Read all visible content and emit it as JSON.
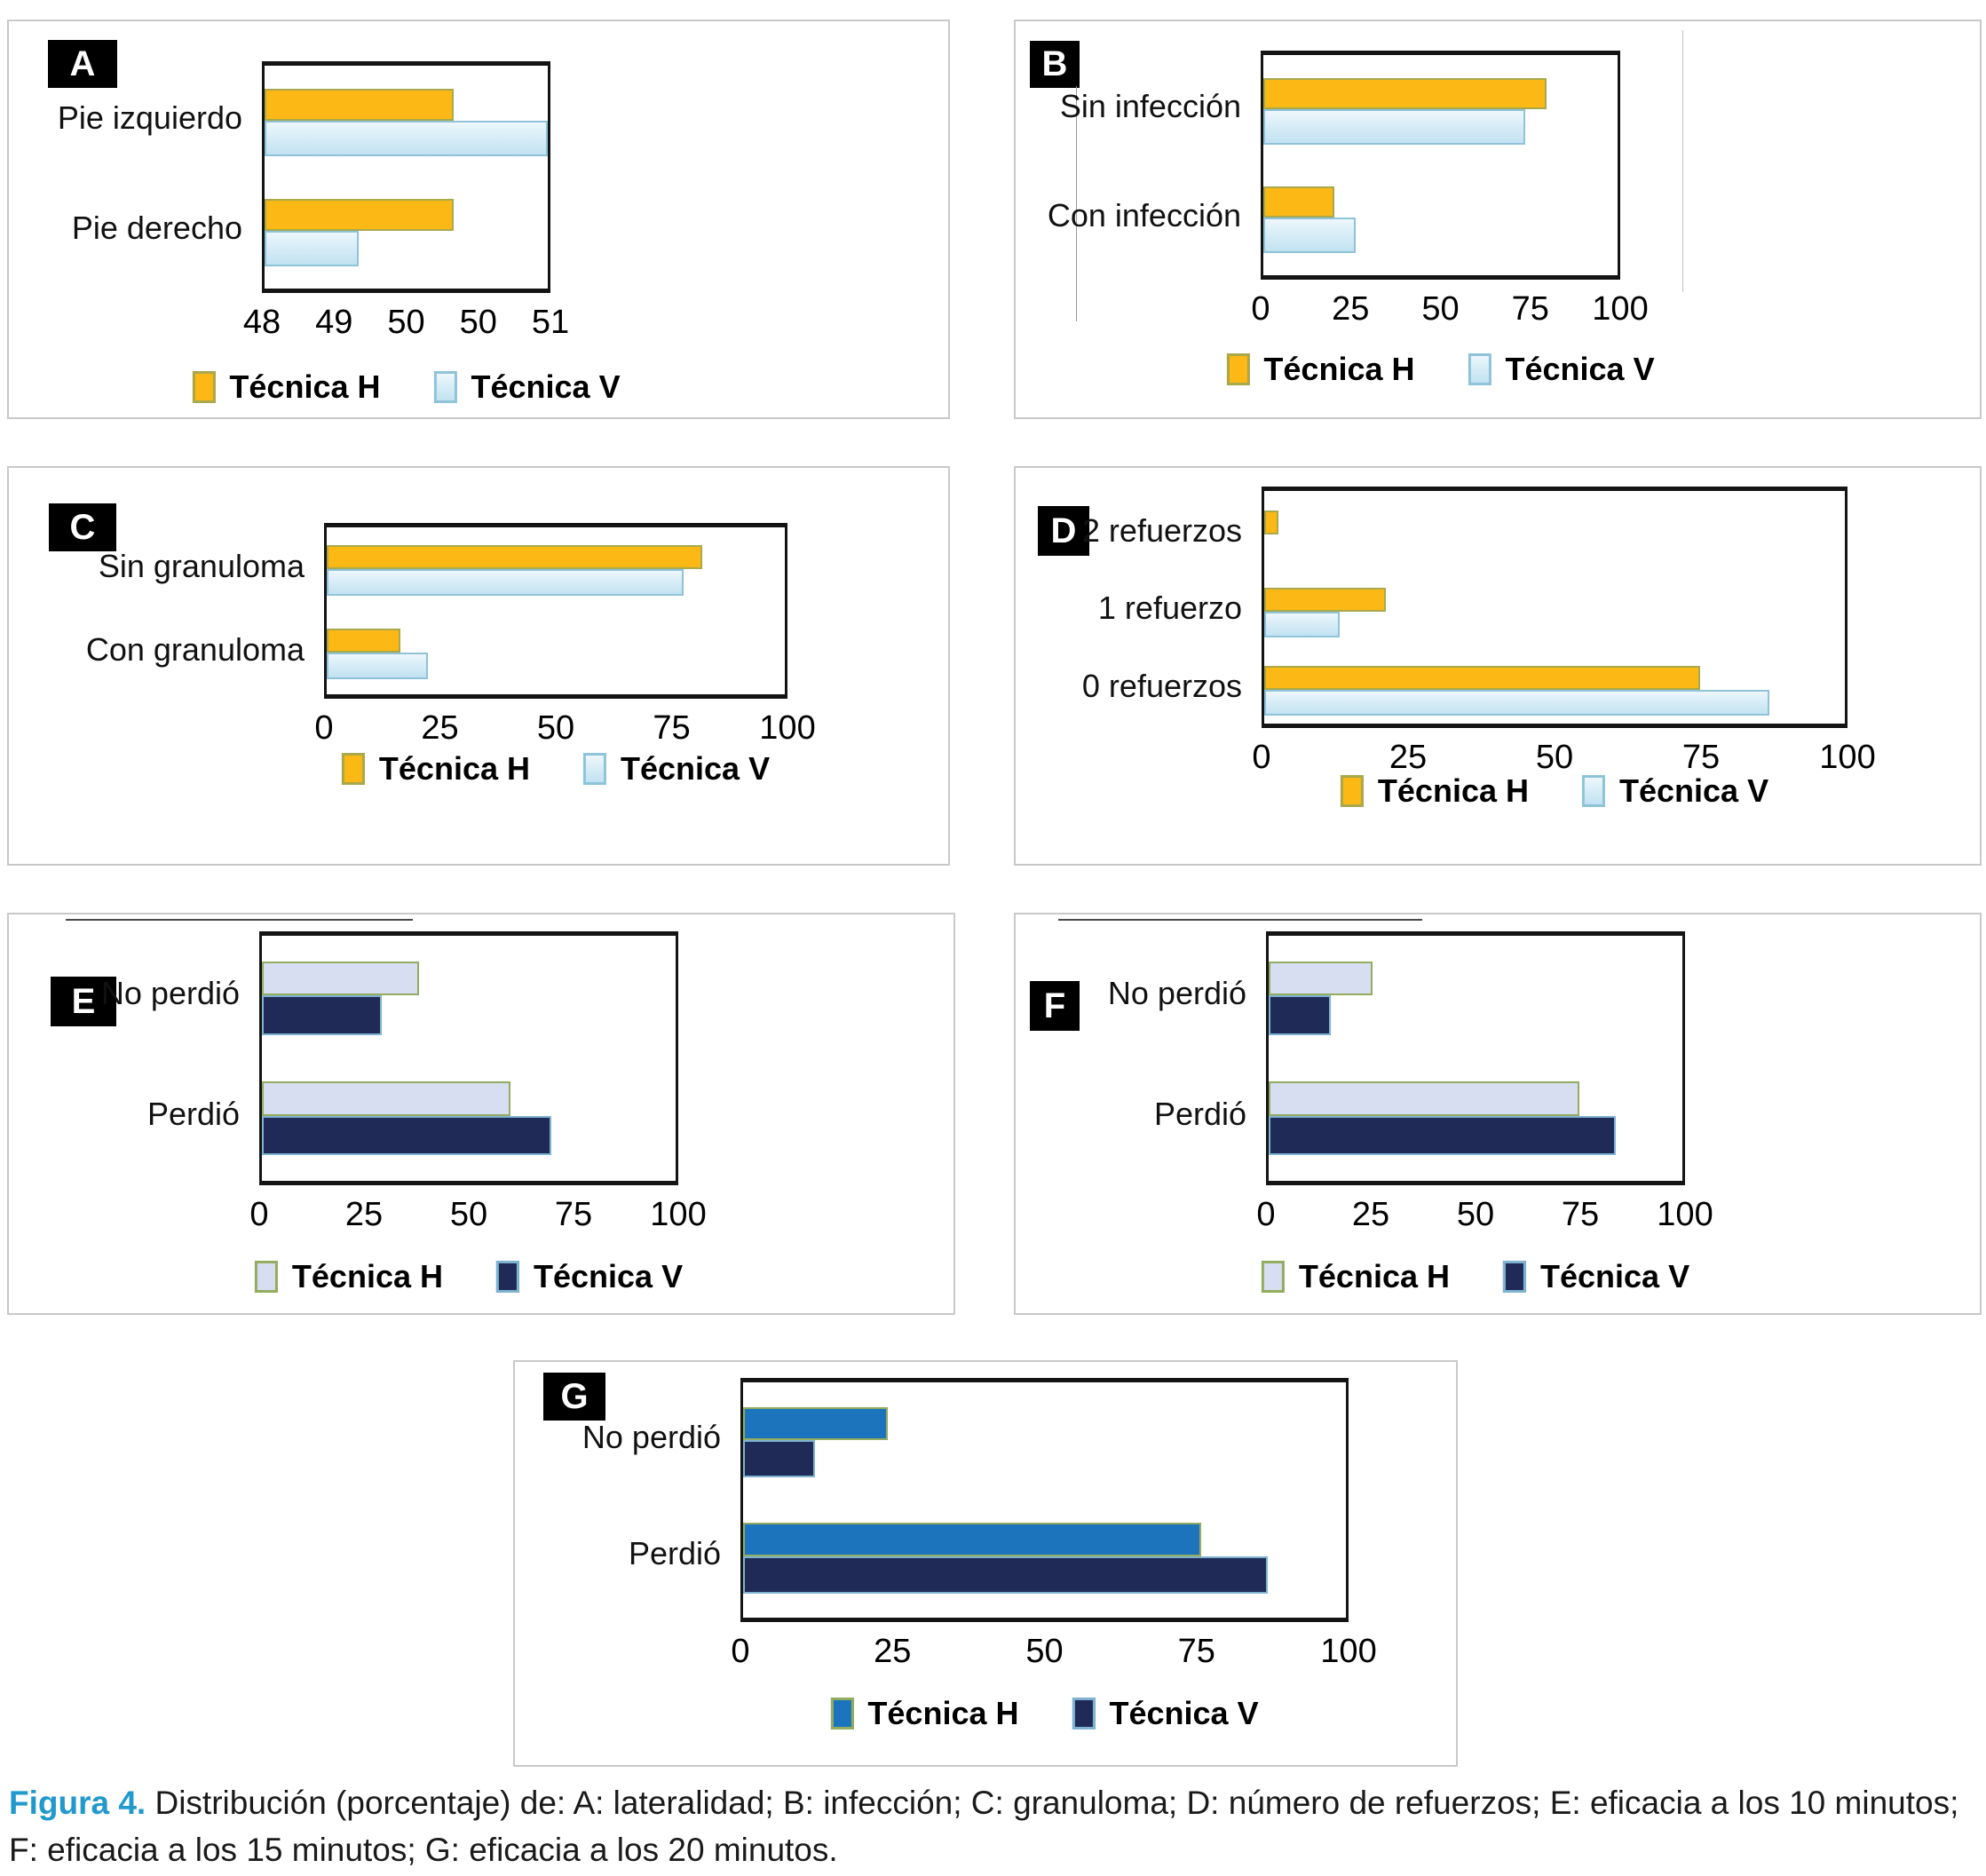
{
  "figure": {
    "caption_label": "Figura 4.",
    "caption_text": " Distribución (porcentaje) de: A: lateralidad; B: infección; C: granuloma; D: número de refuerzos; E: eficacia a los 10 minutos; F: eficacia a los 15 minutos; G: eficacia a los 20 minutos.",
    "caption_label_color": "#2199cc"
  },
  "palettes": {
    "yellow_lightblue": {
      "h_fill": "#fcb815",
      "h_border": "#a9a84b",
      "v_fill": "linear-gradient(180deg,#eef7fc 0%,#d8edf7 45%,#c2e2f1 100%)",
      "v_border": "#8ec3da"
    },
    "lavender_navy": {
      "h_fill": "#d8def1",
      "h_border": "#93ac60",
      "v_fill": "#1f2a56",
      "v_border": "#7fb3d2"
    },
    "blue_navy": {
      "h_fill": "#1c75bc",
      "h_border": "#93ac60",
      "v_fill": "#1f2a56",
      "v_border": "#7fb3d2"
    }
  },
  "chart_data": [
    {
      "panel": "A",
      "type": "bar",
      "orientation": "horizontal",
      "categories": [
        "Pie izquierdo",
        "Pie derecho"
      ],
      "series": [
        {
          "name": "Técnica H",
          "values": [
            50,
            50
          ]
        },
        {
          "name": "Técnica V",
          "values": [
            51,
            49
          ]
        }
      ],
      "axis": {
        "min": 48,
        "max": 51,
        "ticks": [
          "48",
          "49",
          "50",
          "50",
          "51"
        ]
      },
      "legend": [
        "Técnica H",
        "Técnica V"
      ],
      "legend_position": "bottom",
      "palette": "yellow_lightblue",
      "geom": {
        "panel": [
          8,
          22,
          1062,
          450
        ],
        "plot": [
          285,
          45,
          325,
          261
        ],
        "letter": [
          44,
          21,
          78,
          54
        ],
        "legend_dy": 85,
        "stray": []
      }
    },
    {
      "panel": "B",
      "type": "bar",
      "orientation": "horizontal",
      "categories": [
        "Sin infección",
        "Con infección"
      ],
      "series": [
        {
          "name": "Técnica H",
          "values": [
            80,
            20
          ]
        },
        {
          "name": "Técnica V",
          "values": [
            74,
            26
          ]
        }
      ],
      "axis": {
        "min": 0,
        "max": 100,
        "ticks": [
          "0",
          "25",
          "50",
          "75",
          "100"
        ]
      },
      "legend": [
        "Técnica H",
        "Técnica V"
      ],
      "legend_position": "bottom",
      "palette": "yellow_lightblue",
      "geom": {
        "panel": [
          1142,
          22,
          1090,
          450
        ],
        "plot": [
          276,
          33,
          405,
          258
        ],
        "letter": [
          16,
          22,
          56,
          53
        ],
        "legend_dy": 80,
        "stray": [
          {
            "dir": "v",
            "x": 68,
            "y1": 73,
            "y2": 338,
            "color": "#9a9a9a"
          },
          {
            "dir": "v",
            "x": 751,
            "y1": 10,
            "y2": 305,
            "color": "#c4c4c4"
          }
        ]
      }
    },
    {
      "panel": "C",
      "type": "bar",
      "orientation": "horizontal",
      "categories": [
        "Sin granuloma",
        "Con granuloma"
      ],
      "series": [
        {
          "name": "Técnica H",
          "values": [
            82,
            16
          ]
        },
        {
          "name": "Técnica V",
          "values": [
            78,
            22
          ]
        }
      ],
      "axis": {
        "min": 0,
        "max": 100,
        "ticks": [
          "0",
          "25",
          "50",
          "75",
          "100"
        ]
      },
      "legend": [
        "Técnica H",
        "Técnica V"
      ],
      "legend_position": "bottom",
      "palette": "yellow_lightblue",
      "geom": {
        "panel": [
          8,
          525,
          1062,
          450
        ],
        "plot": [
          355,
          62,
          522,
          198
        ],
        "letter": [
          45,
          40,
          76,
          54
        ],
        "legend_dy": 58,
        "stray": []
      }
    },
    {
      "panel": "D",
      "type": "bar",
      "orientation": "horizontal",
      "categories": [
        "2 refuerzos",
        "1 refuerzo",
        "0 refuerzos"
      ],
      "series": [
        {
          "name": "Técnica H",
          "values": [
            2.5,
            21,
            75
          ]
        },
        {
          "name": "Técnica V",
          "values": [
            0,
            13,
            87
          ]
        }
      ],
      "axis": {
        "min": 0,
        "max": 100,
        "ticks": [
          "0",
          "25",
          "50",
          "75",
          "100"
        ]
      },
      "legend": [
        "Técnica H",
        "Técnica V"
      ],
      "legend_position": "bottom",
      "palette": "yellow_lightblue",
      "geom": {
        "panel": [
          1142,
          525,
          1090,
          450
        ],
        "plot": [
          277,
          21,
          660,
          272
        ],
        "letter": [
          25,
          43,
          58,
          56
        ],
        "legend_dy": 50,
        "stray": []
      }
    },
    {
      "panel": "E",
      "type": "bar",
      "orientation": "horizontal",
      "categories": [
        "No perdió",
        "Perdió"
      ],
      "series": [
        {
          "name": "Técnica H",
          "values": [
            38,
            60
          ]
        },
        {
          "name": "Técnica V",
          "values": [
            29,
            70
          ]
        }
      ],
      "axis": {
        "min": 0,
        "max": 100,
        "ticks": [
          "0",
          "25",
          "50",
          "75",
          "100"
        ]
      },
      "legend": [
        "Técnica H",
        "Técnica V"
      ],
      "legend_position": "bottom",
      "palette": "lavender_navy",
      "geom": {
        "panel": [
          8,
          1028,
          1068,
          453
        ],
        "plot": [
          282,
          19,
          472,
          286
        ],
        "letter": [
          47,
          70,
          74,
          56
        ],
        "legend_dy": 82,
        "stray": [
          {
            "dir": "h",
            "y": 5,
            "x1": 64,
            "x2": 455,
            "color": "#4a4a4a"
          }
        ]
      }
    },
    {
      "panel": "F",
      "type": "bar",
      "orientation": "horizontal",
      "categories": [
        "No perdió",
        "Perdió"
      ],
      "series": [
        {
          "name": "Técnica H",
          "values": [
            25,
            75
          ]
        },
        {
          "name": "Técnica V",
          "values": [
            15,
            84
          ]
        }
      ],
      "axis": {
        "min": 0,
        "max": 100,
        "ticks": [
          "0",
          "25",
          "50",
          "75",
          "100"
        ]
      },
      "legend": [
        "Técnica H",
        "Técnica V"
      ],
      "legend_position": "bottom",
      "palette": "lavender_navy",
      "geom": {
        "panel": [
          1142,
          1028,
          1090,
          453
        ],
        "plot": [
          282,
          19,
          472,
          286
        ],
        "letter": [
          16,
          75,
          56,
          56
        ],
        "legend_dy": 82,
        "stray": [
          {
            "dir": "h",
            "y": 5,
            "x1": 48,
            "x2": 458,
            "color": "#4a4a4a"
          }
        ]
      }
    },
    {
      "panel": "G",
      "type": "bar",
      "orientation": "horizontal",
      "categories": [
        "No perdió",
        "Perdió"
      ],
      "series": [
        {
          "name": "Técnica H",
          "values": [
            24,
            76
          ]
        },
        {
          "name": "Técnica V",
          "values": [
            12,
            87
          ]
        }
      ],
      "axis": {
        "min": 0,
        "max": 100,
        "ticks": [
          "0",
          "25",
          "50",
          "75",
          "100"
        ]
      },
      "legend": [
        "Técnica H",
        "Técnica V"
      ],
      "legend_position": "bottom",
      "palette": "blue_navy",
      "geom": {
        "panel": [
          578,
          1532,
          1064,
          458
        ],
        "plot": [
          254,
          18,
          685,
          275
        ],
        "letter": [
          32,
          12,
          70,
          54
        ],
        "legend_dy": 82,
        "stray": []
      }
    }
  ]
}
